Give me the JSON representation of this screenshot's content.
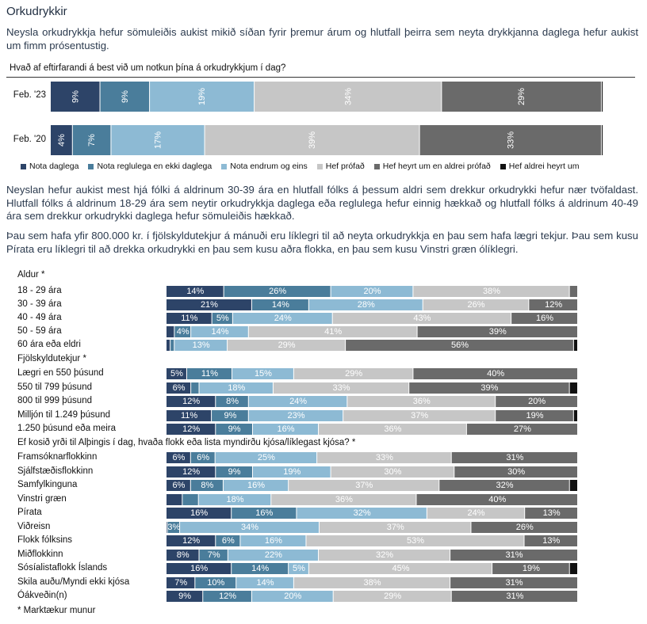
{
  "title": "Orkudrykkir",
  "intro": "Neysla orkudrykkja hefur sömuleiðis aukist mikið síðan fyrir þremur árum og hlutfall þeirra sem neyta drykkjanna daglega hefur aukist um fimm prósentustig.",
  "body_paragraph_1": "Neyslan hefur aukist mest hjá fólki á aldrinum 30-39 ára en hlutfall fólks á þessum aldri sem drekkur orkudrykki hefur nær tvöfaldast. Hlutfall fólks á aldrinum 18-29 ára sem neytir orkudrykkja daglega eða reglulega hefur einnig hækkað og hlutfall fólks á aldrinum 40-49 ára sem drekkur orkudrykki daglega hefur sömuleiðis hækkað.",
  "body_paragraph_2": "Þau sem hafa yfir 800.000 kr. í fjölskyldutekjur á mánuði eru líklegri til að neyta orkudrykkja en þau sem hafa lægri tekjur. Þau sem kusu Pírata eru líklegri til að drekka orkudrykki en þau sem kusu aðra flokka, en þau sem kusu Vinstri græn ólíklegri.",
  "footnote": "* Marktækur munur",
  "colors": [
    "#2d4468",
    "#4a7d9b",
    "#8dbad4",
    "#c6c6c6",
    "#6a6a6a",
    "#111111"
  ],
  "chart_data": [
    {
      "type": "bar",
      "orientation": "horizontal",
      "stacked": true,
      "title": "Hvað af eftirfarandi á best við um notkun þína á orkudrykkjum í dag?",
      "series_names": [
        "Nota daglega",
        "Nota reglulega en ekki daglega",
        "Nota endrum og eins",
        "Hef prófað",
        "Hef heyrt um en aldrei prófað",
        "Hef aldrei heyrt um"
      ],
      "legend_position": "bottom",
      "categories": [
        "Feb. '23",
        "Feb. '20"
      ],
      "values": [
        [
          9,
          9,
          19,
          34,
          29,
          0.3
        ],
        [
          4,
          7,
          17,
          39,
          33,
          0.3
        ]
      ],
      "labels": [
        [
          "9%",
          "9%",
          "19%",
          "34%",
          "29%",
          ""
        ],
        [
          "4%",
          "7%",
          "17%",
          "39%",
          "33%",
          ""
        ]
      ],
      "xlim": [
        0,
        100
      ]
    },
    {
      "type": "bar",
      "orientation": "horizontal",
      "stacked": true,
      "xlim": [
        0,
        100
      ],
      "groups": [
        {
          "title": "Aldur *",
          "rows": [
            {
              "label": "18 - 29 ára",
              "values": [
                14,
                26,
                20,
                38,
                2
              ],
              "labels": [
                "14%",
                "26%",
                "20%",
                "38%",
                ""
              ]
            },
            {
              "label": "30 - 39 ára",
              "values": [
                21,
                14,
                28,
                26,
                12
              ],
              "labels": [
                "21%",
                "14%",
                "28%",
                "26%",
                "12%"
              ]
            },
            {
              "label": "40 - 49 ára",
              "values": [
                11,
                5,
                24,
                43,
                16
              ],
              "labels": [
                "11%",
                "5%",
                "24%",
                "43%",
                "16%"
              ]
            },
            {
              "label": "50 - 59 ára",
              "values": [
                2,
                4,
                14,
                41,
                39
              ],
              "labels": [
                "",
                "4%",
                "14%",
                "41%",
                "39%"
              ]
            },
            {
              "label": "60 ára eða eldri",
              "values": [
                1,
                1,
                13,
                29,
                56,
                1
              ],
              "labels": [
                "",
                "",
                "13%",
                "29%",
                "56%",
                ""
              ]
            }
          ]
        },
        {
          "title": "Fjölskyldutekjur *",
          "rows": [
            {
              "label": "Lægri en 550 þúsund",
              "values": [
                5,
                11,
                15,
                29,
                40
              ],
              "labels": [
                "5%",
                "11%",
                "15%",
                "29%",
                "40%"
              ]
            },
            {
              "label": "550 til 799 þúsund",
              "values": [
                6,
                2,
                18,
                33,
                39,
                2
              ],
              "labels": [
                "6%",
                "",
                "18%",
                "33%",
                "39%",
                ""
              ]
            },
            {
              "label": "800 til 999 þúsund",
              "values": [
                12,
                8,
                24,
                36,
                20
              ],
              "labels": [
                "12%",
                "8%",
                "24%",
                "36%",
                "20%"
              ]
            },
            {
              "label": "Milljón til 1.249 þúsund",
              "values": [
                11,
                9,
                23,
                37,
                19,
                1
              ],
              "labels": [
                "11%",
                "9%",
                "23%",
                "37%",
                "19%",
                ""
              ]
            },
            {
              "label": "1.250 þúsund eða meira",
              "values": [
                12,
                9,
                16,
                36,
                27
              ],
              "labels": [
                "12%",
                "9%",
                "16%",
                "36%",
                "27%"
              ]
            }
          ]
        },
        {
          "title": "Ef kosið yrði til Alþingis í dag, hvaða flokk eða lista myndirðu kjósa/líklegast kjósa? *",
          "rows": [
            {
              "label": "Framsóknarflokkinn",
              "values": [
                6,
                6,
                25,
                33,
                31
              ],
              "labels": [
                "6%",
                "6%",
                "25%",
                "33%",
                "31%"
              ]
            },
            {
              "label": "Sjálfstæðisflokkinn",
              "values": [
                12,
                9,
                19,
                30,
                30
              ],
              "labels": [
                "12%",
                "9%",
                "19%",
                "30%",
                "30%"
              ]
            },
            {
              "label": "Samfylkinguna",
              "values": [
                6,
                8,
                16,
                37,
                32,
                2
              ],
              "labels": [
                "6%",
                "8%",
                "16%",
                "37%",
                "32%",
                ""
              ]
            },
            {
              "label": "Vinstri græn",
              "values": [
                4,
                4,
                18,
                36,
                40
              ],
              "labels": [
                "",
                "",
                "18%",
                "36%",
                "40%"
              ]
            },
            {
              "label": "Pírata",
              "values": [
                16,
                16,
                32,
                24,
                13
              ],
              "labels": [
                "16%",
                "16%",
                "32%",
                "24%",
                "13%"
              ]
            },
            {
              "label": "Viðreisn",
              "values": [
                0.3,
                3,
                34,
                37,
                26
              ],
              "labels": [
                "",
                "3%",
                "34%",
                "37%",
                "26%"
              ]
            },
            {
              "label": "Flokk fólksins",
              "values": [
                12,
                6,
                16,
                53,
                13
              ],
              "labels": [
                "12%",
                "6%",
                "16%",
                "53%",
                "13%"
              ]
            },
            {
              "label": "Miðflokkinn",
              "values": [
                8,
                7,
                22,
                32,
                31
              ],
              "labels": [
                "8%",
                "7%",
                "22%",
                "32%",
                "31%"
              ]
            },
            {
              "label": "Sósíalistaflokk Íslands",
              "values": [
                16,
                14,
                5,
                45,
                19,
                2
              ],
              "labels": [
                "16%",
                "14%",
                "5%",
                "45%",
                "19%",
                ""
              ]
            },
            {
              "label": "Skila auðu/Myndi ekki kjósa",
              "values": [
                7,
                10,
                14,
                38,
                31
              ],
              "labels": [
                "7%",
                "10%",
                "14%",
                "38%",
                "31%"
              ]
            },
            {
              "label": "Óákveðin(n)",
              "values": [
                9,
                12,
                20,
                29,
                31
              ],
              "labels": [
                "9%",
                "12%",
                "20%",
                "29%",
                "31%"
              ]
            }
          ]
        }
      ]
    }
  ]
}
